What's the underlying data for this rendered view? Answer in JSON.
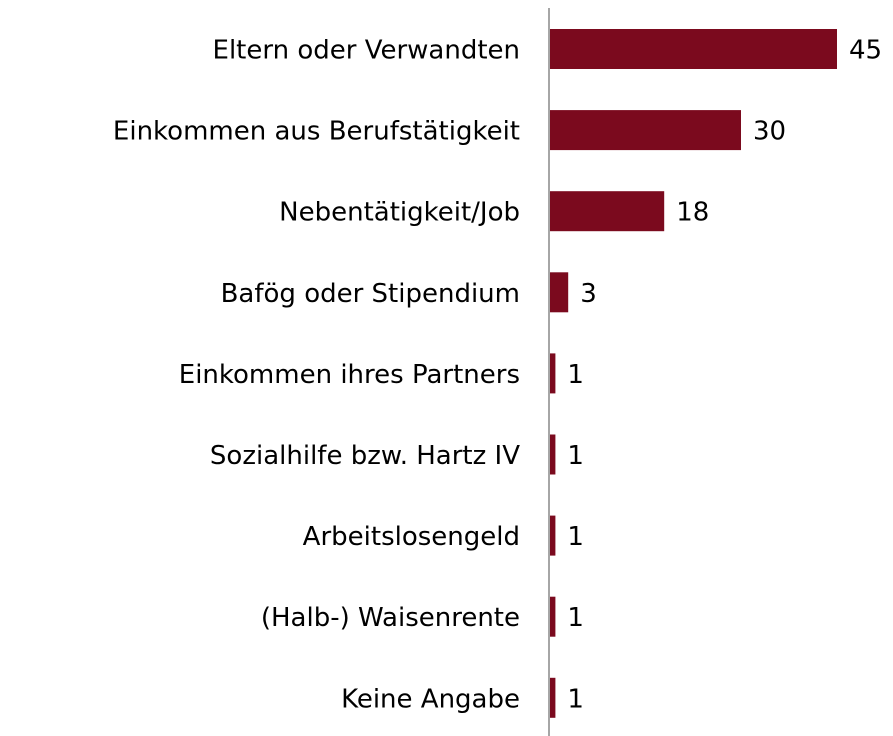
{
  "chart_data": {
    "type": "barh",
    "categories": [
      "Eltern oder Verwandten",
      "Einkommen aus Berufstätigkeit",
      "Nebentätigkeit/Job",
      "Bafög oder Stipendium",
      "Einkommen ihres Partners",
      "Sozialhilfe bzw. Hartz IV",
      "Arbeitslosengeld",
      "(Halb-) Waisenrente",
      "Keine Angabe"
    ],
    "values": [
      45,
      30,
      18,
      3,
      1,
      1,
      1,
      1,
      1
    ],
    "color": "#7b0a1e"
  }
}
